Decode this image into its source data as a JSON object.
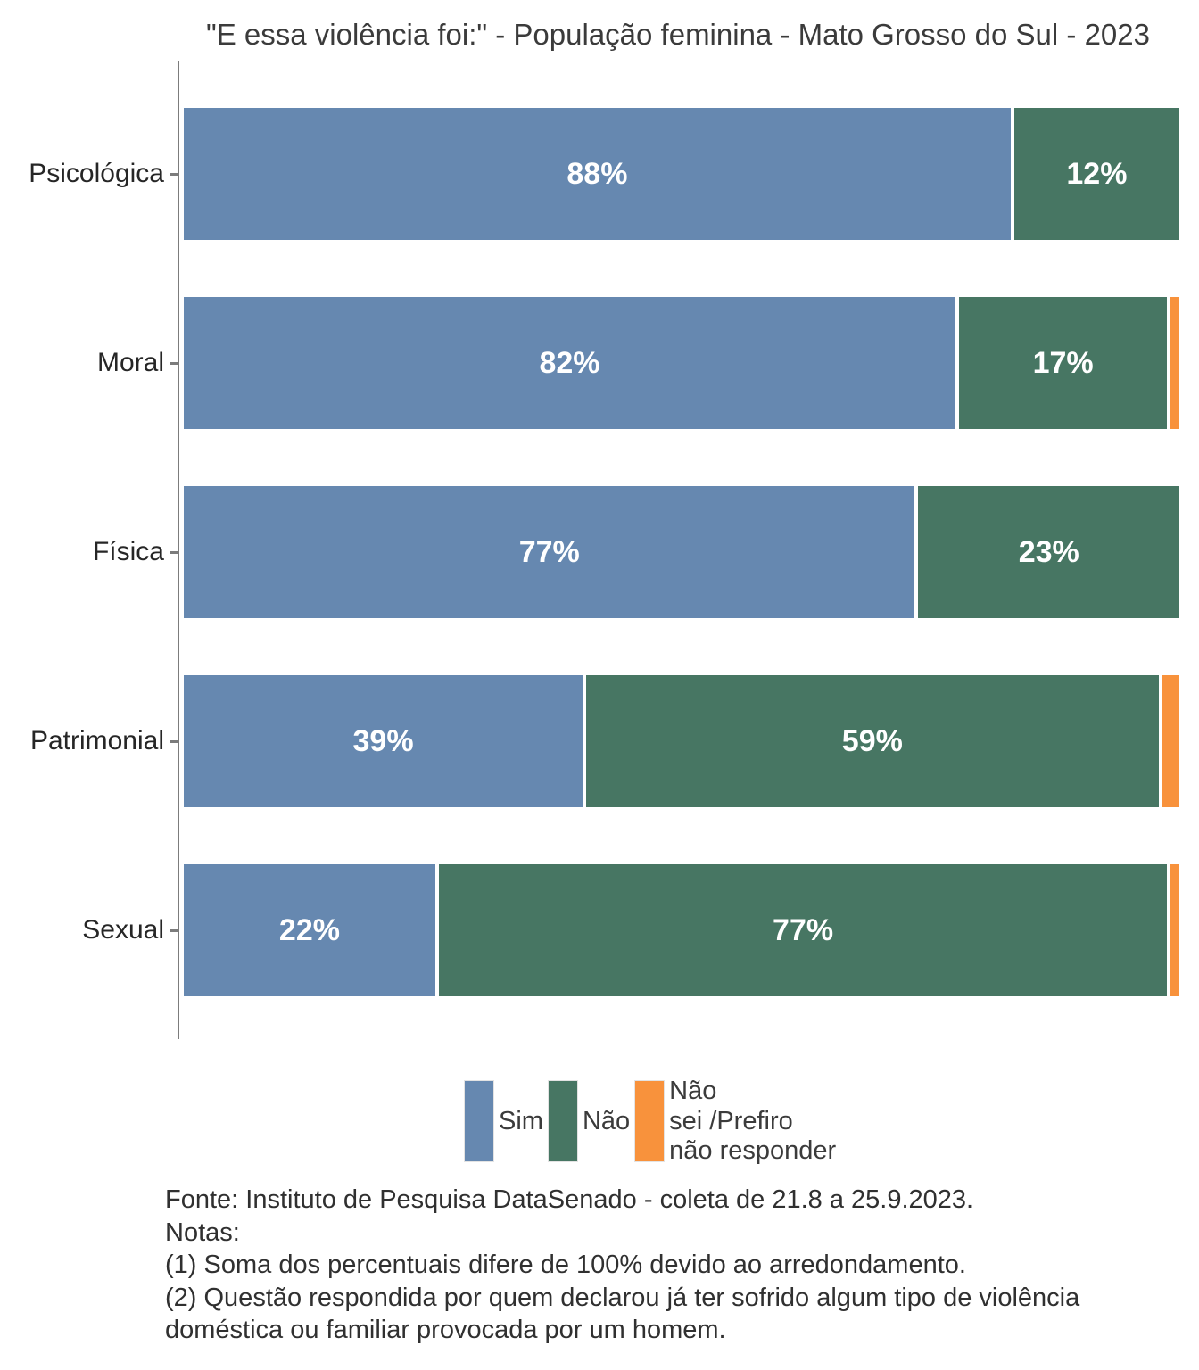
{
  "title": "\"E essa violência foi:\" - População feminina - Mato Grosso do Sul - 2023",
  "colors": {
    "sim": "#6688b0",
    "nao": "#477663",
    "nao_sei": "#f8923c",
    "axis": "#7c7c7c",
    "bar_label": "#ffffff"
  },
  "chart_data": {
    "type": "bar",
    "orientation": "horizontal",
    "stacked": true,
    "grid": false,
    "data_labels": true,
    "value_format": "percent",
    "xlim": [
      0,
      100
    ],
    "legend_position": "bottom",
    "title": "\"E essa violência foi:\" - População feminina - Mato Grosso do Sul - 2023",
    "categories": [
      "Psicológica",
      "Moral",
      "Física",
      "Patrimonial",
      "Sexual"
    ],
    "series": [
      {
        "name": "Sim",
        "color": "#6688b0",
        "values": [
          88,
          82,
          77,
          39,
          22
        ]
      },
      {
        "name": "Não",
        "color": "#477663",
        "values": [
          12,
          17,
          23,
          59,
          77
        ]
      },
      {
        "name": "Não sei /Prefiro não responder",
        "color": "#f8923c",
        "values": [
          0,
          1,
          0,
          2,
          1
        ]
      }
    ]
  },
  "legend": {
    "items": [
      {
        "label": "Sim",
        "color": "#6688b0"
      },
      {
        "label": "Não",
        "color": "#477663"
      },
      {
        "label": "Não\nsei /Prefiro\nnão responder",
        "color": "#f8923c"
      }
    ]
  },
  "footer": {
    "source": "Fonte: Instituto de Pesquisa DataSenado - coleta de 21.8 a 25.9.2023.",
    "notes_label": "Notas:",
    "note1": "(1) Soma dos percentuais difere de 100% devido ao arredondamento.",
    "note2": "(2) Questão respondida por quem declarou já ter sofrido algum tipo de violência doméstica ou familiar provocada por um homem."
  }
}
